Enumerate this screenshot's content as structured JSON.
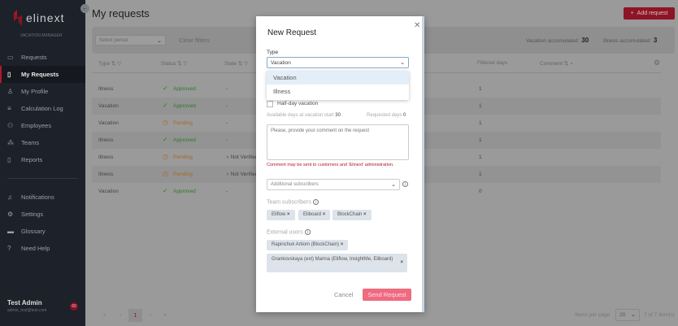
{
  "sidebar": {
    "brand": "elinext",
    "subtitle": "VACATION MANAGER",
    "items": [
      {
        "label": "Requests",
        "icon": "folder-icon"
      },
      {
        "label": "My Requests",
        "icon": "document-icon",
        "active": true
      },
      {
        "label": "My Profile",
        "icon": "user-icon"
      },
      {
        "label": "Calculation Log",
        "icon": "list-icon"
      },
      {
        "label": "Employees",
        "icon": "users-icon"
      },
      {
        "label": "Teams",
        "icon": "team-icon"
      },
      {
        "label": "Reports",
        "icon": "report-icon"
      }
    ],
    "bottom_items": [
      {
        "label": "Notifications",
        "icon": "bell-icon"
      },
      {
        "label": "Settings",
        "icon": "gear-icon"
      },
      {
        "label": "Glossary",
        "icon": "book-icon"
      },
      {
        "label": "Need Help",
        "icon": "help-icon"
      }
    ],
    "user": {
      "name": "Test Admin",
      "email": "admin_test@test.com",
      "badge": "60"
    }
  },
  "header": {
    "title": "My requests",
    "add_button": "Add request"
  },
  "filters": {
    "period_placeholder": "Select period",
    "clear": "Clear filters",
    "vacation_label": "Vacation accumulated:",
    "vacation_value": "30",
    "illness_label": "Illness accumulated:",
    "illness_value": "3"
  },
  "table": {
    "headers": [
      "Type",
      "Status",
      "State",
      "Filtered days",
      "Comment"
    ],
    "rows": [
      {
        "type": "Illness",
        "status": "Approved",
        "state": "-",
        "days": "1"
      },
      {
        "type": "Vacation",
        "status": "Approved",
        "state": "-",
        "days": "1"
      },
      {
        "type": "Vacation",
        "status": "Pending",
        "state": "-",
        "days": "1"
      },
      {
        "type": "Illness",
        "status": "Approved",
        "state": "-",
        "days": "1"
      },
      {
        "type": "Illness",
        "status": "Pending",
        "state": "Not Verified",
        "days": "1"
      },
      {
        "type": "Illness",
        "status": "Pending",
        "state": "Not Verified",
        "days": "1"
      },
      {
        "type": "Vacation",
        "status": "Approved",
        "state": "-",
        "days": "0"
      }
    ]
  },
  "pagination": {
    "first": "«",
    "prev": "‹",
    "page": "1",
    "next": "›",
    "last": "»",
    "items_per_page_label": "Items per page",
    "items_per_page": "20",
    "total": "7 of 7 item(s)"
  },
  "modal": {
    "title": "New Request",
    "type_label": "Type",
    "type_value": "Vacation",
    "options": [
      "Vacation",
      "Illness"
    ],
    "half_day": "Half-day vacation",
    "available_label": "Available days at vacation start",
    "available_value": "30",
    "requested_label": "Requested days",
    "requested_value": "0",
    "comment_placeholder": "Please, provide your comment on the request",
    "warning": "Comment may be sent to customers and 'Elinext' administration.",
    "subscribers_placeholder": "Additional subscribers",
    "team_label": "Team subscribers",
    "team": [
      "Eliflow",
      "Eliboard",
      "BlockChain"
    ],
    "external_label": "External users",
    "external": [
      "Rapinchuk Artiom (BlockChain)",
      "Grankovskaya (ext) Marina (Eliflow, InsightMe, Eliboard)"
    ],
    "cancel": "Cancel",
    "send": "Send Request"
  },
  "colors": {
    "accent": "#b0182b",
    "approved": "#2f7a2a",
    "pending": "#a76a20",
    "send_button": "#ef6b80"
  }
}
